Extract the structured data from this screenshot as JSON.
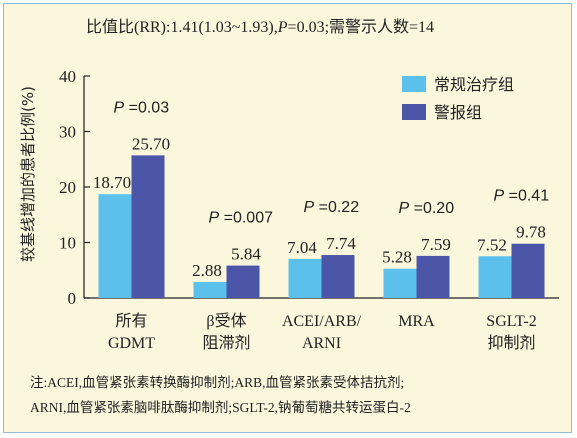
{
  "chart_data": {
    "type": "bar",
    "title": "比值比(RR):1.41(1.03~1.93),P=0.03;需警示人数=14",
    "title_parts": {
      "pre": "比值比(RR):1.41(1.03~1.93),",
      "p": "P",
      "post": "=0.03;需警示人数=14"
    },
    "ylabel": "较基线增加的患者比例(%)",
    "xlabel": "",
    "ylim": [
      0,
      40
    ],
    "yticks": [
      0,
      10,
      20,
      30,
      40
    ],
    "grid": false,
    "legend_position": "top-right",
    "categories": [
      [
        "所有",
        "GDMT"
      ],
      [
        "β受体",
        "阻滞剂"
      ],
      [
        "ACEI/ARB/",
        "ARNI"
      ],
      [
        "MRA"
      ],
      [
        "SGLT-2",
        "抑制剂"
      ]
    ],
    "p_values": [
      {
        "p": "P",
        "rest": " =0.03"
      },
      {
        "p": "P",
        "rest": " =0.007"
      },
      {
        "p": "P",
        "rest": " =0.22"
      },
      {
        "p": "P",
        "rest": " =0.20"
      },
      {
        "p": "P",
        "rest": " =0.41"
      }
    ],
    "series": [
      {
        "name": "常规治疗组",
        "color": "#5bc0ec",
        "values": [
          18.7,
          2.88,
          7.04,
          5.28,
          7.52
        ],
        "labels": [
          "18.70",
          "2.88",
          "7.04",
          "5.28",
          "7.52"
        ]
      },
      {
        "name": "警报组",
        "color": "#4b56a8",
        "values": [
          25.7,
          5.84,
          7.74,
          7.59,
          9.78
        ],
        "labels": [
          "25.70",
          "5.84",
          "7.74",
          "7.59",
          "9.78"
        ]
      }
    ]
  },
  "note": {
    "line1": "注:ACEI,血管紧张素转换酶抑制剂;ARB,血管紧张素受体拮抗剂;",
    "line2": "ARNI,血管紧张素脑啡肽酶抑制剂;SGLT-2,钠葡萄糖共转运蛋白-2"
  },
  "colors": {
    "frame_border": "#8fbde0",
    "background": "#fbf7dd",
    "axis": "#222222"
  }
}
